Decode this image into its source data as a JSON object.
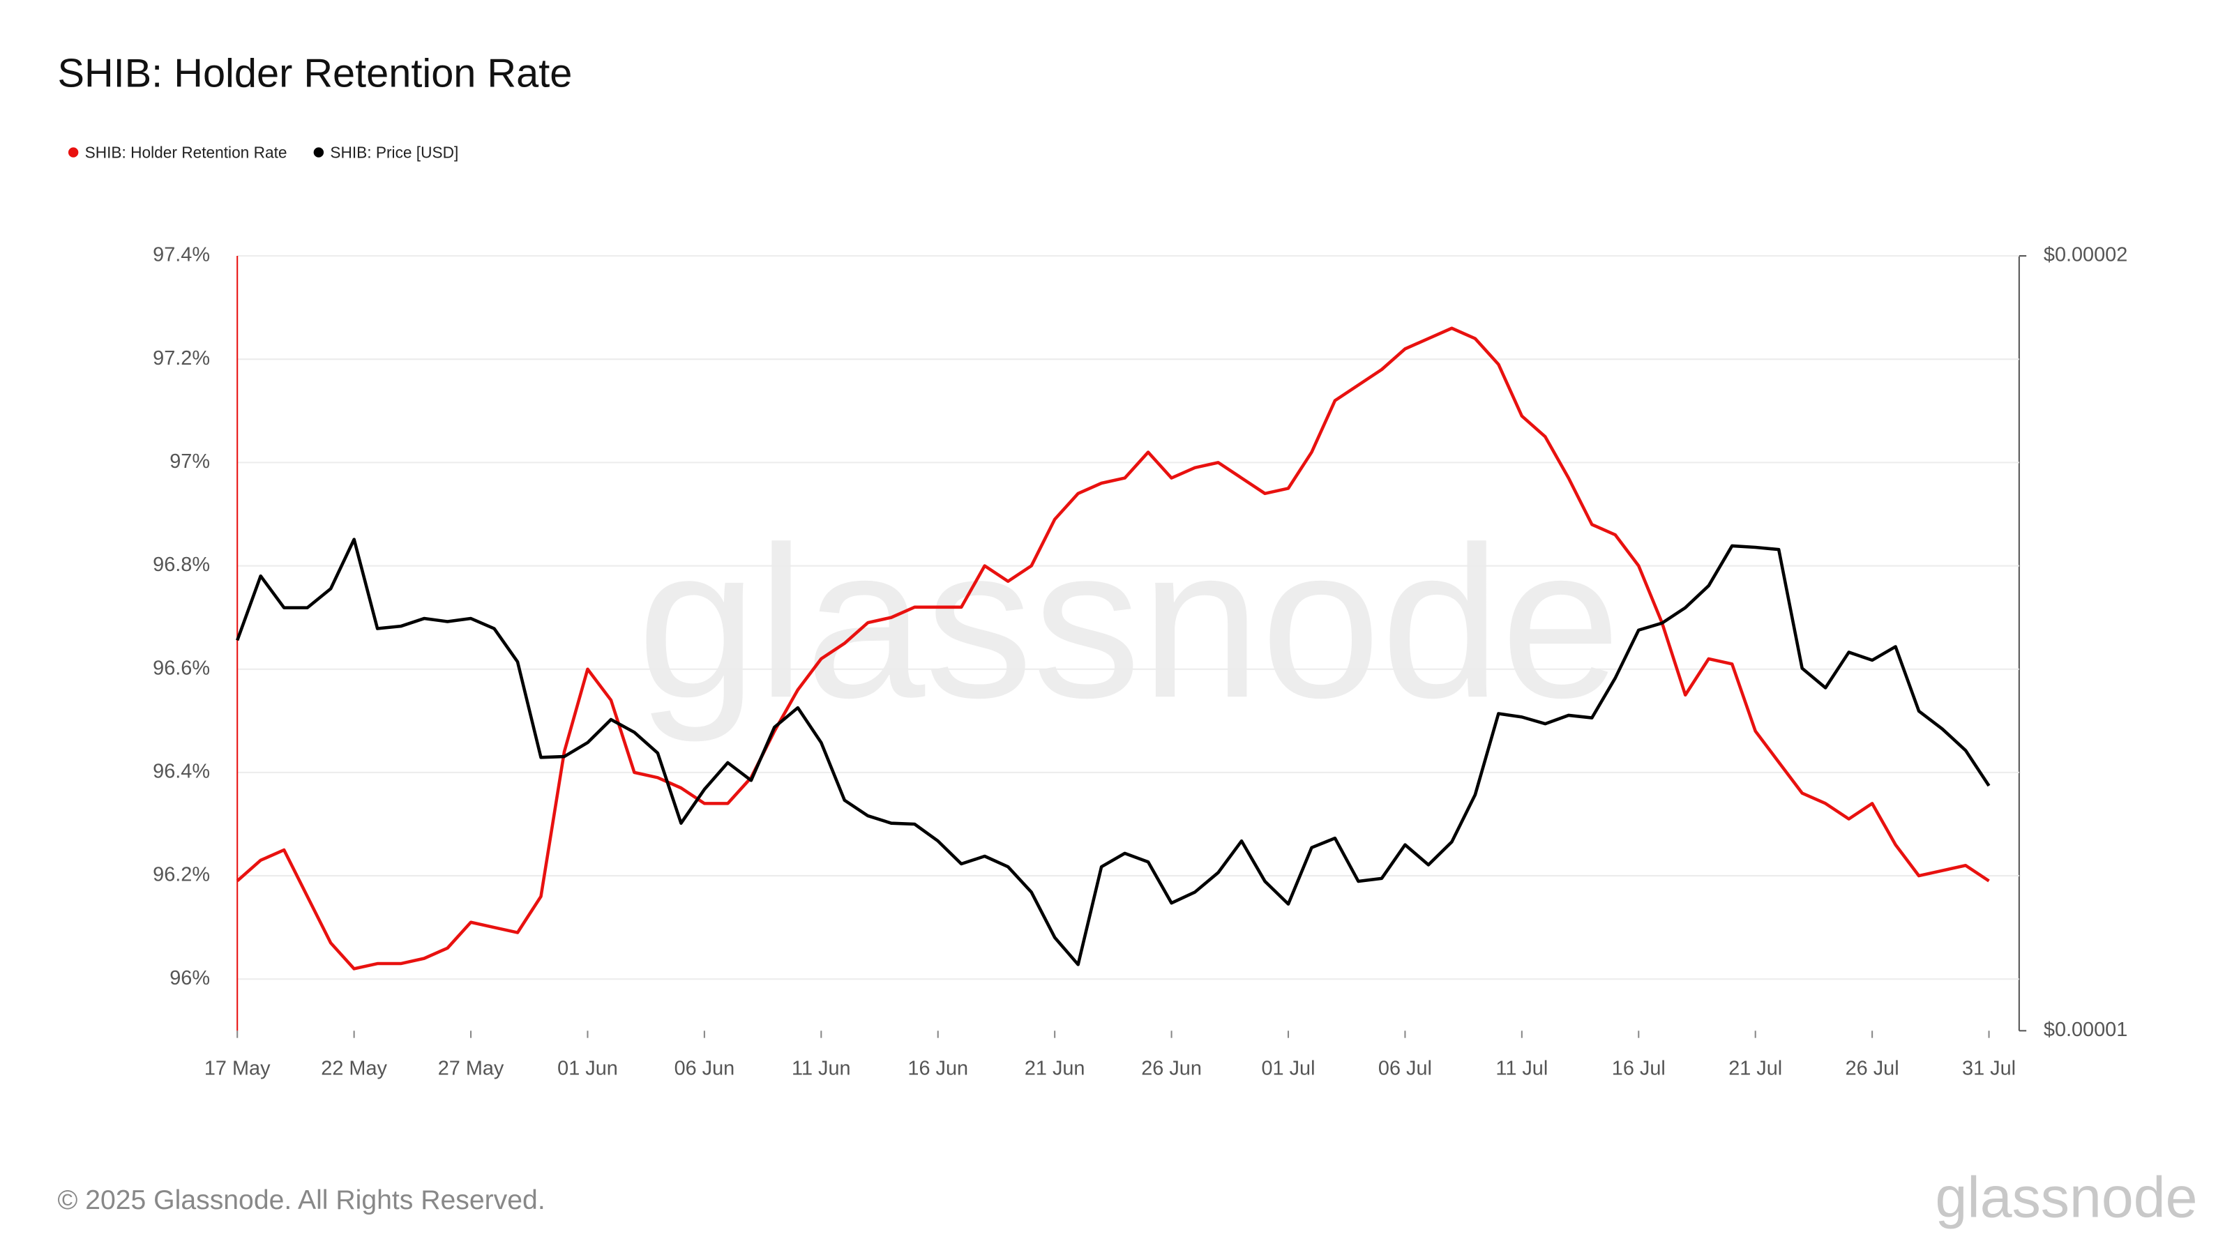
{
  "chart_data": {
    "type": "line",
    "title": "SHIB: Holder Retention Rate",
    "footer": "© 2025 Glassnode. All Rights Reserved.",
    "watermark": "glassnode",
    "logo": "glassnode",
    "categories": [
      "17 May",
      null,
      null,
      null,
      null,
      "22 May",
      null,
      null,
      null,
      null,
      "27 May",
      null,
      null,
      null,
      null,
      "01 Jun",
      null,
      null,
      null,
      null,
      "06 Jun",
      null,
      null,
      null,
      null,
      "11 Jun",
      null,
      null,
      null,
      null,
      "16 Jun",
      null,
      null,
      null,
      null,
      "21 Jun",
      null,
      null,
      null,
      null,
      "26 Jun",
      null,
      null,
      null,
      null,
      "01 Jul",
      null,
      null,
      null,
      null,
      "06 Jul",
      null,
      null,
      null,
      null,
      "11 Jul",
      null,
      null,
      null,
      null,
      "16 Jul",
      null,
      null,
      null,
      null,
      "21 Jul",
      null,
      null,
      null,
      null,
      "26 Jul",
      null,
      null,
      null,
      null,
      "31 Jul"
    ],
    "series": [
      {
        "name": "SHIB: Holder Retention Rate",
        "color": "#e8110f",
        "axis": "y",
        "values": [
          96.19,
          96.23,
          96.25,
          96.16,
          96.07,
          96.02,
          96.03,
          96.03,
          96.04,
          96.06,
          96.11,
          96.1,
          96.09,
          96.16,
          96.44,
          96.6,
          96.54,
          96.4,
          96.39,
          96.37,
          96.34,
          96.34,
          96.39,
          96.48,
          96.56,
          96.62,
          96.65,
          96.69,
          96.7,
          96.72,
          96.72,
          96.72,
          96.8,
          96.77,
          96.8,
          96.89,
          96.94,
          96.96,
          96.97,
          97.02,
          96.97,
          96.99,
          97.0,
          96.97,
          96.94,
          96.95,
          97.02,
          97.12,
          97.15,
          97.18,
          97.22,
          97.24,
          97.26,
          97.24,
          97.19,
          97.09,
          97.05,
          96.97,
          96.88,
          96.86,
          96.8,
          96.69,
          96.55,
          96.62,
          96.61,
          96.48,
          96.42,
          96.36,
          96.34,
          96.31,
          96.34,
          96.26,
          96.2,
          96.21,
          96.22,
          96.19
        ]
      },
      {
        "name": "SHIB: Price [USD]",
        "color": "#000000",
        "axis": "y2",
        "values": [
          1.418e-05,
          1.502e-05,
          1.46e-05,
          1.46e-05,
          1.485e-05,
          1.552e-05,
          1.433e-05,
          1.436e-05,
          1.446e-05,
          1.442e-05,
          1.446e-05,
          1.433e-05,
          1.391e-05,
          1.277e-05,
          1.278e-05,
          1.294e-05,
          1.321e-05,
          1.306e-05,
          1.282e-05,
          1.204e-05,
          1.241e-05,
          1.271e-05,
          1.251e-05,
          1.312e-05,
          1.335e-05,
          1.294e-05,
          1.229e-05,
          1.212e-05,
          1.204e-05,
          1.203e-05,
          1.185e-05,
          1.161e-05,
          1.169e-05,
          1.158e-05,
          1.132e-05,
          1.087e-05,
          1.061e-05,
          1.158e-05,
          1.172e-05,
          1.163e-05,
          1.121e-05,
          1.132e-05,
          1.152e-05,
          1.185e-05,
          1.143e-05,
          1.12e-05,
          1.178e-05,
          1.188e-05,
          1.143e-05,
          1.146e-05,
          1.181e-05,
          1.16e-05,
          1.184e-05,
          1.235e-05,
          1.328e-05,
          1.324e-05,
          1.316e-05,
          1.326e-05,
          1.323e-05,
          1.371e-05,
          1.431e-05,
          1.44e-05,
          1.46e-05,
          1.489e-05,
          1.543e-05,
          1.541e-05,
          1.538e-05,
          1.383e-05,
          1.359e-05,
          1.403e-05,
          1.393e-05,
          1.41e-05,
          1.331e-05,
          1.31e-05,
          1.285e-05,
          1.245e-05
        ]
      }
    ],
    "ylim": [
      95.9,
      97.4
    ],
    "yticks": [
      {
        "value": 96,
        "label": "96%"
      },
      {
        "value": 96.2,
        "label": "96.2%"
      },
      {
        "value": 96.4,
        "label": "96.4%"
      },
      {
        "value": 96.6,
        "label": "96.6%"
      },
      {
        "value": 96.8,
        "label": "96.8%"
      },
      {
        "value": 97,
        "label": "97%"
      },
      {
        "value": 97.2,
        "label": "97.2%"
      },
      {
        "value": 97.4,
        "label": "97.4%"
      }
    ],
    "y2lim": [
      1e-05,
      2e-05
    ],
    "y2ticks": [
      {
        "value": 1e-05,
        "label": "$0.00001"
      },
      {
        "value": 2e-05,
        "label": "$0.00002"
      }
    ],
    "y2log": true,
    "grid": true,
    "legend": "top-left"
  }
}
